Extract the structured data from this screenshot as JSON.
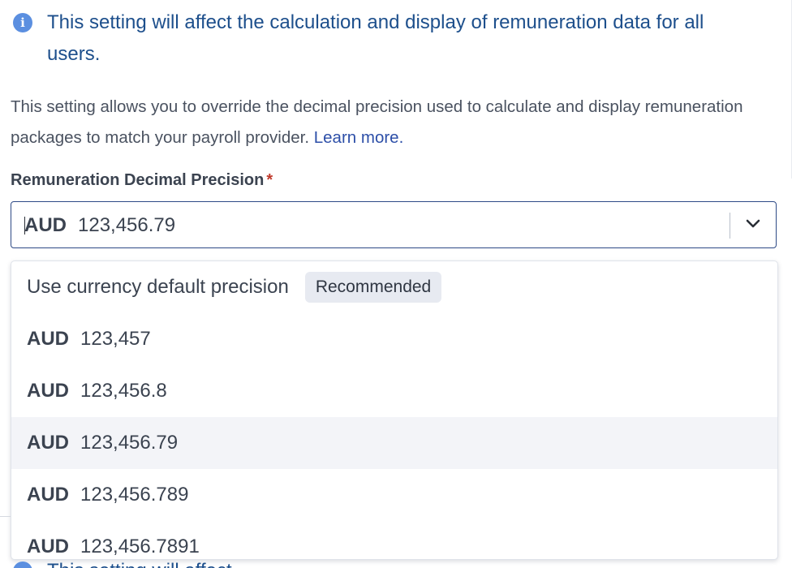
{
  "info_banner": {
    "icon": "info-icon",
    "text": "This setting will affect the calculation and display of remuneration data for all users."
  },
  "description": {
    "text": "This setting allows you to override the decimal precision used to calculate and display remuneration packages to match your payroll provider. ",
    "link_text": "Learn more."
  },
  "field": {
    "label": "Remuneration Decimal Precision",
    "required_mark": "*",
    "selected_currency": "AUD",
    "selected_value": "123,456.79"
  },
  "dropdown": {
    "default_option": {
      "label": "Use currency default precision",
      "badge": "Recommended"
    },
    "options": [
      {
        "currency": "AUD",
        "value": "123,457"
      },
      {
        "currency": "AUD",
        "value": "123,456.8"
      },
      {
        "currency": "AUD",
        "value": "123,456.79",
        "selected": true
      },
      {
        "currency": "AUD",
        "value": "123,456.789"
      },
      {
        "currency": "AUD",
        "value": "123,456.7891"
      }
    ]
  },
  "bottom_banner_peek": {
    "text": "This setting will affect"
  },
  "colors": {
    "info_text": "#1d4f8c",
    "info_icon": "#5b8fe0",
    "link": "#2d4fa8",
    "required": "#c0392b",
    "select_border": "#2e4a86",
    "selected_option_bg": "#f3f4f8",
    "badge_bg": "#e7eaf1"
  }
}
